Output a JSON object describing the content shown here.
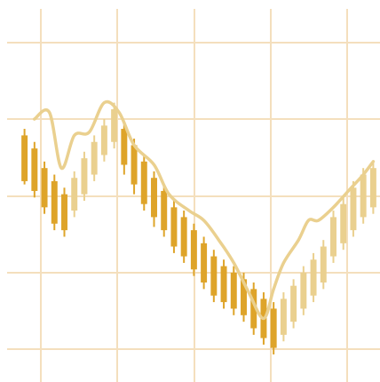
{
  "colors": {
    "background": "#ffffff",
    "grid": "#f4dfbd",
    "bearish_candle": "#dea42a",
    "bullish_candle": "#ead08f",
    "line": "#ead08f"
  },
  "chart_data": {
    "type": "candlestick",
    "grid": true,
    "x_range": [
      0,
      36
    ],
    "y_range": [
      0,
      100
    ],
    "candles": [
      {
        "i": 0,
        "open": 70,
        "close": 56,
        "high": 72,
        "low": 55
      },
      {
        "i": 1,
        "open": 66,
        "close": 53,
        "high": 68,
        "low": 51
      },
      {
        "i": 2,
        "open": 60,
        "close": 48,
        "high": 62,
        "low": 46
      },
      {
        "i": 3,
        "open": 56,
        "close": 43,
        "high": 58,
        "low": 41
      },
      {
        "i": 4,
        "open": 52,
        "close": 41,
        "high": 54,
        "low": 39
      },
      {
        "i": 5,
        "open": 47,
        "close": 57,
        "high": 59,
        "low": 45
      },
      {
        "i": 6,
        "open": 52,
        "close": 63,
        "high": 65,
        "low": 50
      },
      {
        "i": 7,
        "open": 58,
        "close": 68,
        "high": 70,
        "low": 56
      },
      {
        "i": 8,
        "open": 64,
        "close": 73,
        "high": 75,
        "low": 62
      },
      {
        "i": 9,
        "open": 68,
        "close": 78,
        "high": 80,
        "low": 66
      },
      {
        "i": 10,
        "open": 72,
        "close": 61,
        "high": 74,
        "low": 58
      },
      {
        "i": 11,
        "open": 67,
        "close": 55,
        "high": 69,
        "low": 52
      },
      {
        "i": 12,
        "open": 62,
        "close": 49,
        "high": 64,
        "low": 47
      },
      {
        "i": 13,
        "open": 57,
        "close": 45,
        "high": 59,
        "low": 42
      },
      {
        "i": 14,
        "open": 53,
        "close": 41,
        "high": 55,
        "low": 39
      },
      {
        "i": 15,
        "open": 48,
        "close": 36,
        "high": 50,
        "low": 34
      },
      {
        "i": 16,
        "open": 45,
        "close": 33,
        "high": 47,
        "low": 31
      },
      {
        "i": 17,
        "open": 41,
        "close": 29,
        "high": 43,
        "low": 27
      },
      {
        "i": 18,
        "open": 37,
        "close": 25,
        "high": 39,
        "low": 23
      },
      {
        "i": 19,
        "open": 33,
        "close": 21,
        "high": 35,
        "low": 19
      },
      {
        "i": 20,
        "open": 30,
        "close": 19,
        "high": 32,
        "low": 17
      },
      {
        "i": 21,
        "open": 28,
        "close": 17,
        "high": 30,
        "low": 15
      },
      {
        "i": 22,
        "open": 26,
        "close": 15,
        "high": 28,
        "low": 13
      },
      {
        "i": 23,
        "open": 23,
        "close": 11,
        "high": 25,
        "low": 9
      },
      {
        "i": 24,
        "open": 20,
        "close": 8,
        "high": 22,
        "low": 6
      },
      {
        "i": 25,
        "open": 17,
        "close": 5,
        "high": 19,
        "low": 3
      },
      {
        "i": 26,
        "open": 9,
        "close": 20,
        "high": 22,
        "low": 7
      },
      {
        "i": 27,
        "open": 13,
        "close": 24,
        "high": 26,
        "low": 11
      },
      {
        "i": 28,
        "open": 17,
        "close": 28,
        "high": 30,
        "low": 15
      },
      {
        "i": 29,
        "open": 21,
        "close": 32,
        "high": 34,
        "low": 19
      },
      {
        "i": 30,
        "open": 25,
        "close": 36,
        "high": 38,
        "low": 23
      },
      {
        "i": 31,
        "open": 33,
        "close": 45,
        "high": 47,
        "low": 31
      },
      {
        "i": 32,
        "open": 37,
        "close": 49,
        "high": 51,
        "low": 35
      },
      {
        "i": 33,
        "open": 41,
        "close": 54,
        "high": 56,
        "low": 39
      },
      {
        "i": 34,
        "open": 45,
        "close": 58,
        "high": 60,
        "low": 43
      },
      {
        "i": 35,
        "open": 48,
        "close": 60,
        "high": 62,
        "low": 46
      }
    ],
    "overlay_line": [
      {
        "x": 1.5,
        "y": 75
      },
      {
        "x": 3.0,
        "y": 77
      },
      {
        "x": 4.2,
        "y": 60
      },
      {
        "x": 5.5,
        "y": 70
      },
      {
        "x": 7.0,
        "y": 71
      },
      {
        "x": 8.5,
        "y": 80
      },
      {
        "x": 10.0,
        "y": 77
      },
      {
        "x": 11.5,
        "y": 67
      },
      {
        "x": 13.5,
        "y": 61
      },
      {
        "x": 15.0,
        "y": 52
      },
      {
        "x": 17.0,
        "y": 47
      },
      {
        "x": 18.5,
        "y": 44
      },
      {
        "x": 20.0,
        "y": 38
      },
      {
        "x": 21.5,
        "y": 31
      },
      {
        "x": 23.0,
        "y": 22
      },
      {
        "x": 24.5,
        "y": 14
      },
      {
        "x": 25.5,
        "y": 23
      },
      {
        "x": 26.5,
        "y": 31
      },
      {
        "x": 28.0,
        "y": 38
      },
      {
        "x": 29.0,
        "y": 44
      },
      {
        "x": 30.0,
        "y": 44
      },
      {
        "x": 31.5,
        "y": 48
      },
      {
        "x": 33.0,
        "y": 53
      },
      {
        "x": 34.5,
        "y": 58
      },
      {
        "x": 35.5,
        "y": 62
      }
    ]
  }
}
